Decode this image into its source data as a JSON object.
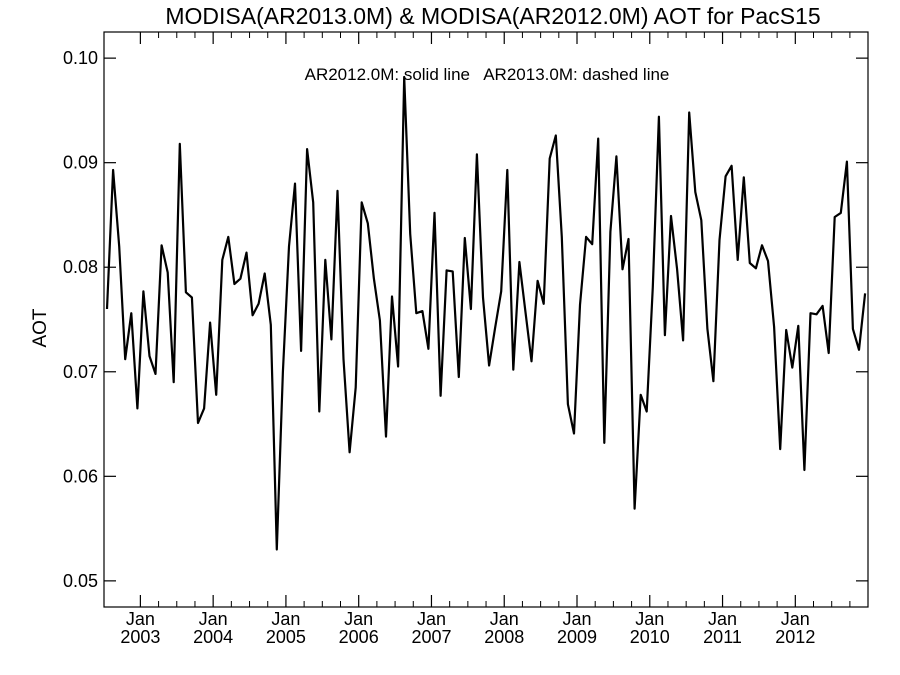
{
  "chart_data": {
    "type": "line",
    "title": "MODISA(AR2013.0M) & MODISA(AR2012.0M)  AOT for PacS15",
    "annotation": "AR2012.0M: solid line   AR2013.0M: dashed line",
    "xlabel": "",
    "ylabel": "AOT",
    "xlim": [
      "2002-07-01",
      "2012-12-31"
    ],
    "ylim": [
      0.0475,
      0.1025
    ],
    "yticks": [
      0.05,
      0.06,
      0.07,
      0.08,
      0.09,
      0.1
    ],
    "ytick_labels": [
      "0.05",
      "0.06",
      "0.07",
      "0.08",
      "0.09",
      "0.10"
    ],
    "xticks": [
      "2003-01-01",
      "2004-01-01",
      "2005-01-01",
      "2006-01-01",
      "2007-01-01",
      "2008-01-01",
      "2009-01-01",
      "2010-01-01",
      "2011-01-01",
      "2012-01-01"
    ],
    "xtick_month_labels": [
      "Jan",
      "Jan",
      "Jan",
      "Jan",
      "Jan",
      "Jan",
      "Jan",
      "Jan",
      "Jan",
      "Jan"
    ],
    "xtick_year_labels": [
      "2003",
      "2004",
      "2005",
      "2006",
      "2007",
      "2008",
      "2009",
      "2010",
      "2011",
      "2012"
    ],
    "grid": false,
    "line_color": "#000000",
    "series": [
      {
        "style": "solid",
        "x": [
          "2002-07",
          "2002-08",
          "2002-09",
          "2002-10",
          "2002-11",
          "2002-12",
          "2003-01",
          "2003-02",
          "2003-03",
          "2003-04",
          "2003-05",
          "2003-06",
          "2003-07",
          "2003-08",
          "2003-09",
          "2003-10",
          "2003-11",
          "2003-12",
          "2004-01",
          "2004-02",
          "2004-03",
          "2004-04",
          "2004-05",
          "2004-06",
          "2004-07",
          "2004-08",
          "2004-09",
          "2004-10",
          "2004-11",
          "2004-12",
          "2005-01",
          "2005-02",
          "2005-03",
          "2005-04",
          "2005-05",
          "2005-06",
          "2005-07",
          "2005-08",
          "2005-09",
          "2005-10",
          "2005-11",
          "2005-12",
          "2006-01",
          "2006-02",
          "2006-03",
          "2006-04",
          "2006-05",
          "2006-06",
          "2006-07",
          "2006-08",
          "2006-09",
          "2006-10",
          "2006-11",
          "2006-12",
          "2007-01",
          "2007-02",
          "2007-03",
          "2007-04",
          "2007-05",
          "2007-06",
          "2007-07",
          "2007-08",
          "2007-09",
          "2007-10",
          "2007-11",
          "2007-12",
          "2008-01",
          "2008-02",
          "2008-03",
          "2008-04",
          "2008-05",
          "2008-06",
          "2008-07",
          "2008-08",
          "2008-09",
          "2008-10",
          "2008-11",
          "2008-12",
          "2009-01",
          "2009-02",
          "2009-03",
          "2009-04",
          "2009-05",
          "2009-06",
          "2009-07",
          "2009-08",
          "2009-09",
          "2009-10",
          "2009-11",
          "2009-12",
          "2010-01",
          "2010-02",
          "2010-03",
          "2010-04",
          "2010-05",
          "2010-06",
          "2010-07",
          "2010-08",
          "2010-09",
          "2010-10",
          "2010-11",
          "2010-12",
          "2011-01",
          "2011-02",
          "2011-03",
          "2011-04",
          "2011-05",
          "2011-06",
          "2011-07",
          "2011-08",
          "2011-09",
          "2011-10",
          "2011-11",
          "2011-12",
          "2012-01",
          "2012-02",
          "2012-03",
          "2012-04",
          "2012-05",
          "2012-06",
          "2012-07",
          "2012-08",
          "2012-09",
          "2012-10",
          "2012-11",
          "2012-12"
        ],
        "values": [
          0.076,
          0.0893,
          0.082,
          0.0712,
          0.0756,
          0.0665,
          0.0777,
          0.0715,
          0.0698,
          0.0821,
          0.0795,
          0.069,
          0.0918,
          0.0776,
          0.0771,
          0.0651,
          0.0665,
          0.0747,
          0.0678,
          0.0807,
          0.0829,
          0.0784,
          0.0789,
          0.0814,
          0.0754,
          0.0765,
          0.0794,
          0.0745,
          0.053,
          0.07,
          0.082,
          0.088,
          0.072,
          0.0913,
          0.0862,
          0.0662,
          0.0807,
          0.0731,
          0.0873,
          0.0712,
          0.0623,
          0.0685,
          0.0862,
          0.0842,
          0.0789,
          0.0749,
          0.0638,
          0.0772,
          0.0705,
          0.0982,
          0.0832,
          0.0756,
          0.0758,
          0.0722,
          0.0852,
          0.0677,
          0.0797,
          0.0796,
          0.0695,
          0.0828,
          0.076,
          0.0908,
          0.0771,
          0.0706,
          0.0742,
          0.0777,
          0.0893,
          0.0702,
          0.0805,
          0.0757,
          0.071,
          0.0787,
          0.0765,
          0.0904,
          0.0926,
          0.0829,
          0.0669,
          0.0641,
          0.0764,
          0.0829,
          0.0822,
          0.0923,
          0.0632,
          0.0834,
          0.0906,
          0.0798,
          0.0827,
          0.0569,
          0.0678,
          0.0662,
          0.0781,
          0.0944,
          0.0735,
          0.0849,
          0.0798,
          0.073,
          0.0948,
          0.0872,
          0.0845,
          0.0741,
          0.0691,
          0.0826,
          0.0887,
          0.0897,
          0.0807,
          0.0886,
          0.0804,
          0.0799,
          0.0821,
          0.0806,
          0.0743,
          0.0626,
          0.074,
          0.0704,
          0.0744,
          0.0606,
          0.0756,
          0.0755,
          0.0763,
          0.0718,
          0.0848,
          0.0852,
          0.0901,
          0.0741,
          0.0721,
          0.0775
        ]
      }
    ]
  }
}
